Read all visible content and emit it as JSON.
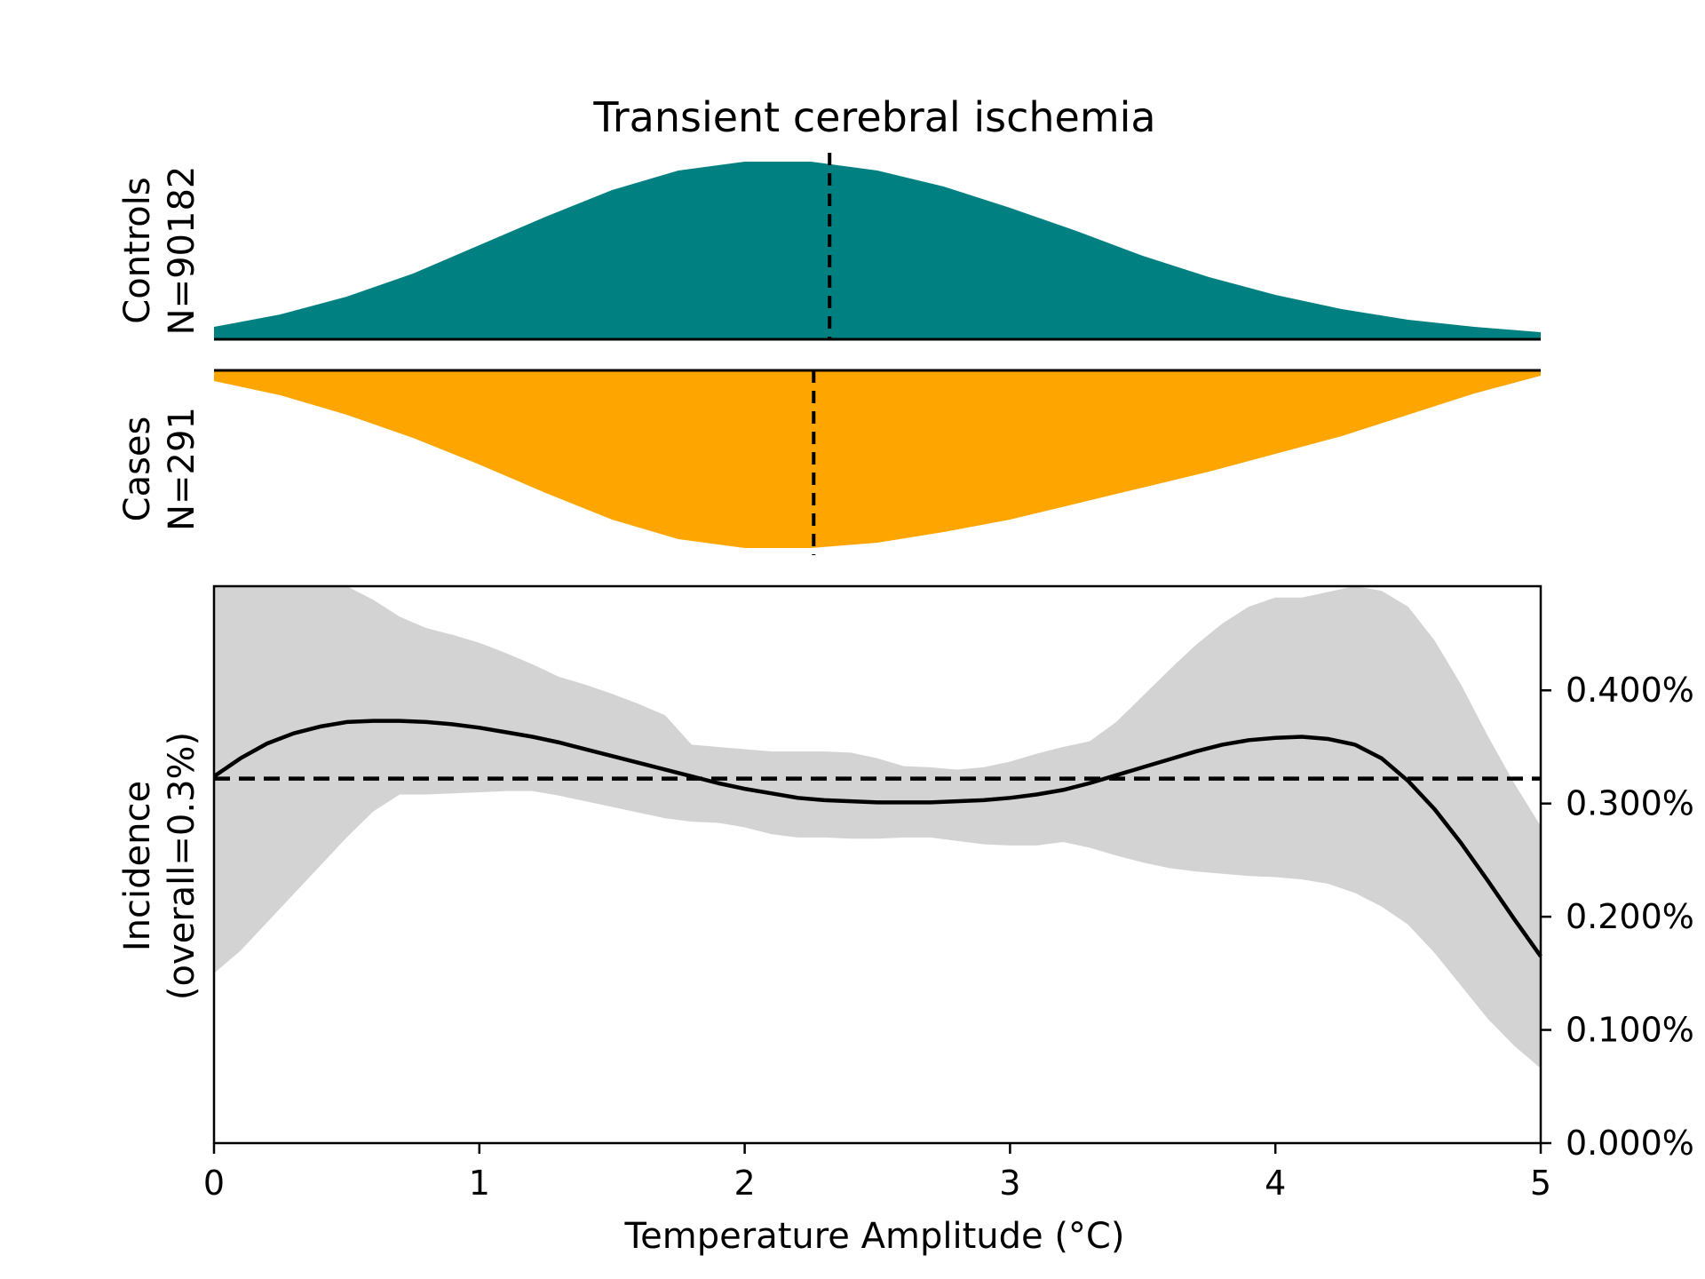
{
  "chart_data": {
    "title": "Transient cerebral ischemia",
    "xlabel": "Temperature Amplitude (°C)",
    "xlim": [
      0,
      5
    ],
    "x_ticks": [
      "0",
      "1",
      "2",
      "3",
      "4",
      "5"
    ],
    "colors": {
      "controls": "#008080",
      "cases": "#FFA500",
      "band": "#D3D3D3",
      "line": "#000000"
    },
    "distributions": [
      {
        "type": "area",
        "panel": "top",
        "label_lines": [
          "Controls",
          "N=90182"
        ],
        "color": "#008080",
        "median": 2.32,
        "x": [
          0,
          0.25,
          0.5,
          0.75,
          1.0,
          1.25,
          1.5,
          1.75,
          2.0,
          2.25,
          2.5,
          2.75,
          3.0,
          3.25,
          3.5,
          3.75,
          4.0,
          4.25,
          4.5,
          4.75,
          5.0
        ],
        "density": [
          0.07,
          0.14,
          0.24,
          0.37,
          0.53,
          0.69,
          0.84,
          0.95,
          1.0,
          1.0,
          0.95,
          0.86,
          0.74,
          0.61,
          0.47,
          0.35,
          0.25,
          0.17,
          0.11,
          0.07,
          0.04
        ]
      },
      {
        "type": "area",
        "panel": "middle",
        "label_lines": [
          "Cases",
          "N=291"
        ],
        "color": "#FFA500",
        "median": 2.26,
        "x": [
          0,
          0.25,
          0.5,
          0.75,
          1.0,
          1.25,
          1.5,
          1.75,
          2.0,
          2.25,
          2.5,
          2.75,
          3.0,
          3.25,
          3.5,
          3.75,
          4.0,
          4.25,
          4.5,
          4.75,
          5.0
        ],
        "density": [
          0.06,
          0.14,
          0.25,
          0.38,
          0.53,
          0.69,
          0.84,
          0.95,
          1.0,
          1.0,
          0.97,
          0.91,
          0.84,
          0.75,
          0.66,
          0.57,
          0.47,
          0.37,
          0.25,
          0.13,
          0.03
        ]
      }
    ],
    "incidence": {
      "type": "line",
      "ylabel_lines": [
        "Incidence",
        "(overall=0.3%)"
      ],
      "ylim": [
        0,
        0.00492
      ],
      "y_ticks": [
        {
          "value": 0.0,
          "label": "0.000%"
        },
        {
          "value": 0.001,
          "label": "0.100%"
        },
        {
          "value": 0.002,
          "label": "0.200%"
        },
        {
          "value": 0.003,
          "label": "0.300%"
        },
        {
          "value": 0.004,
          "label": "0.400%"
        }
      ],
      "overall": 0.00322,
      "x": [
        0,
        0.1,
        0.2,
        0.3,
        0.4,
        0.5,
        0.6,
        0.7,
        0.8,
        0.9,
        1.0,
        1.1,
        1.2,
        1.3,
        1.4,
        1.5,
        1.6,
        1.7,
        1.8,
        1.9,
        2.0,
        2.1,
        2.2,
        2.3,
        2.4,
        2.5,
        2.6,
        2.7,
        2.8,
        2.9,
        3.0,
        3.1,
        3.2,
        3.3,
        3.4,
        3.5,
        3.6,
        3.7,
        3.8,
        3.9,
        4.0,
        4.1,
        4.2,
        4.3,
        4.4,
        4.5,
        4.6,
        4.7,
        4.8,
        4.9,
        5.0
      ],
      "y": [
        0.00324,
        0.0034,
        0.00353,
        0.00362,
        0.00368,
        0.00372,
        0.00373,
        0.00373,
        0.00372,
        0.0037,
        0.00367,
        0.00363,
        0.00359,
        0.00354,
        0.00348,
        0.00342,
        0.00336,
        0.0033,
        0.00324,
        0.00318,
        0.00313,
        0.00309,
        0.00305,
        0.00303,
        0.00302,
        0.00301,
        0.00301,
        0.00301,
        0.00302,
        0.00303,
        0.00305,
        0.00308,
        0.00312,
        0.00318,
        0.00325,
        0.00332,
        0.00339,
        0.00346,
        0.00352,
        0.00356,
        0.00358,
        0.00359,
        0.00357,
        0.00352,
        0.0034,
        0.0032,
        0.00295,
        0.00265,
        0.00232,
        0.00198,
        0.00165
      ],
      "band_upper": [
        0.00492,
        0.00492,
        0.00492,
        0.00492,
        0.00492,
        0.00492,
        0.0048,
        0.00465,
        0.00455,
        0.00449,
        0.00442,
        0.00433,
        0.00423,
        0.00412,
        0.00405,
        0.00397,
        0.00388,
        0.00378,
        0.00352,
        0.0035,
        0.00348,
        0.00346,
        0.00346,
        0.00346,
        0.00345,
        0.0034,
        0.00333,
        0.00332,
        0.0033,
        0.00332,
        0.00337,
        0.00344,
        0.0035,
        0.00355,
        0.00372,
        0.00395,
        0.00418,
        0.0044,
        0.00459,
        0.00474,
        0.00482,
        0.00482,
        0.00487,
        0.00492,
        0.00488,
        0.00474,
        0.00444,
        0.00405,
        0.0036,
        0.00318,
        0.0028
      ],
      "band_lower": [
        0.0015,
        0.0017,
        0.00195,
        0.0022,
        0.00245,
        0.0027,
        0.00293,
        0.00308,
        0.00308,
        0.00309,
        0.0031,
        0.00311,
        0.00311,
        0.00307,
        0.00302,
        0.00297,
        0.00292,
        0.00287,
        0.00284,
        0.00283,
        0.00279,
        0.00273,
        0.0027,
        0.0027,
        0.00269,
        0.00269,
        0.0027,
        0.0027,
        0.00267,
        0.00264,
        0.00263,
        0.00263,
        0.00266,
        0.00261,
        0.00254,
        0.00248,
        0.00243,
        0.0024,
        0.00238,
        0.00236,
        0.00235,
        0.00233,
        0.00229,
        0.00221,
        0.00209,
        0.00193,
        0.00168,
        0.00139,
        0.0011,
        0.00086,
        0.00066
      ]
    }
  }
}
